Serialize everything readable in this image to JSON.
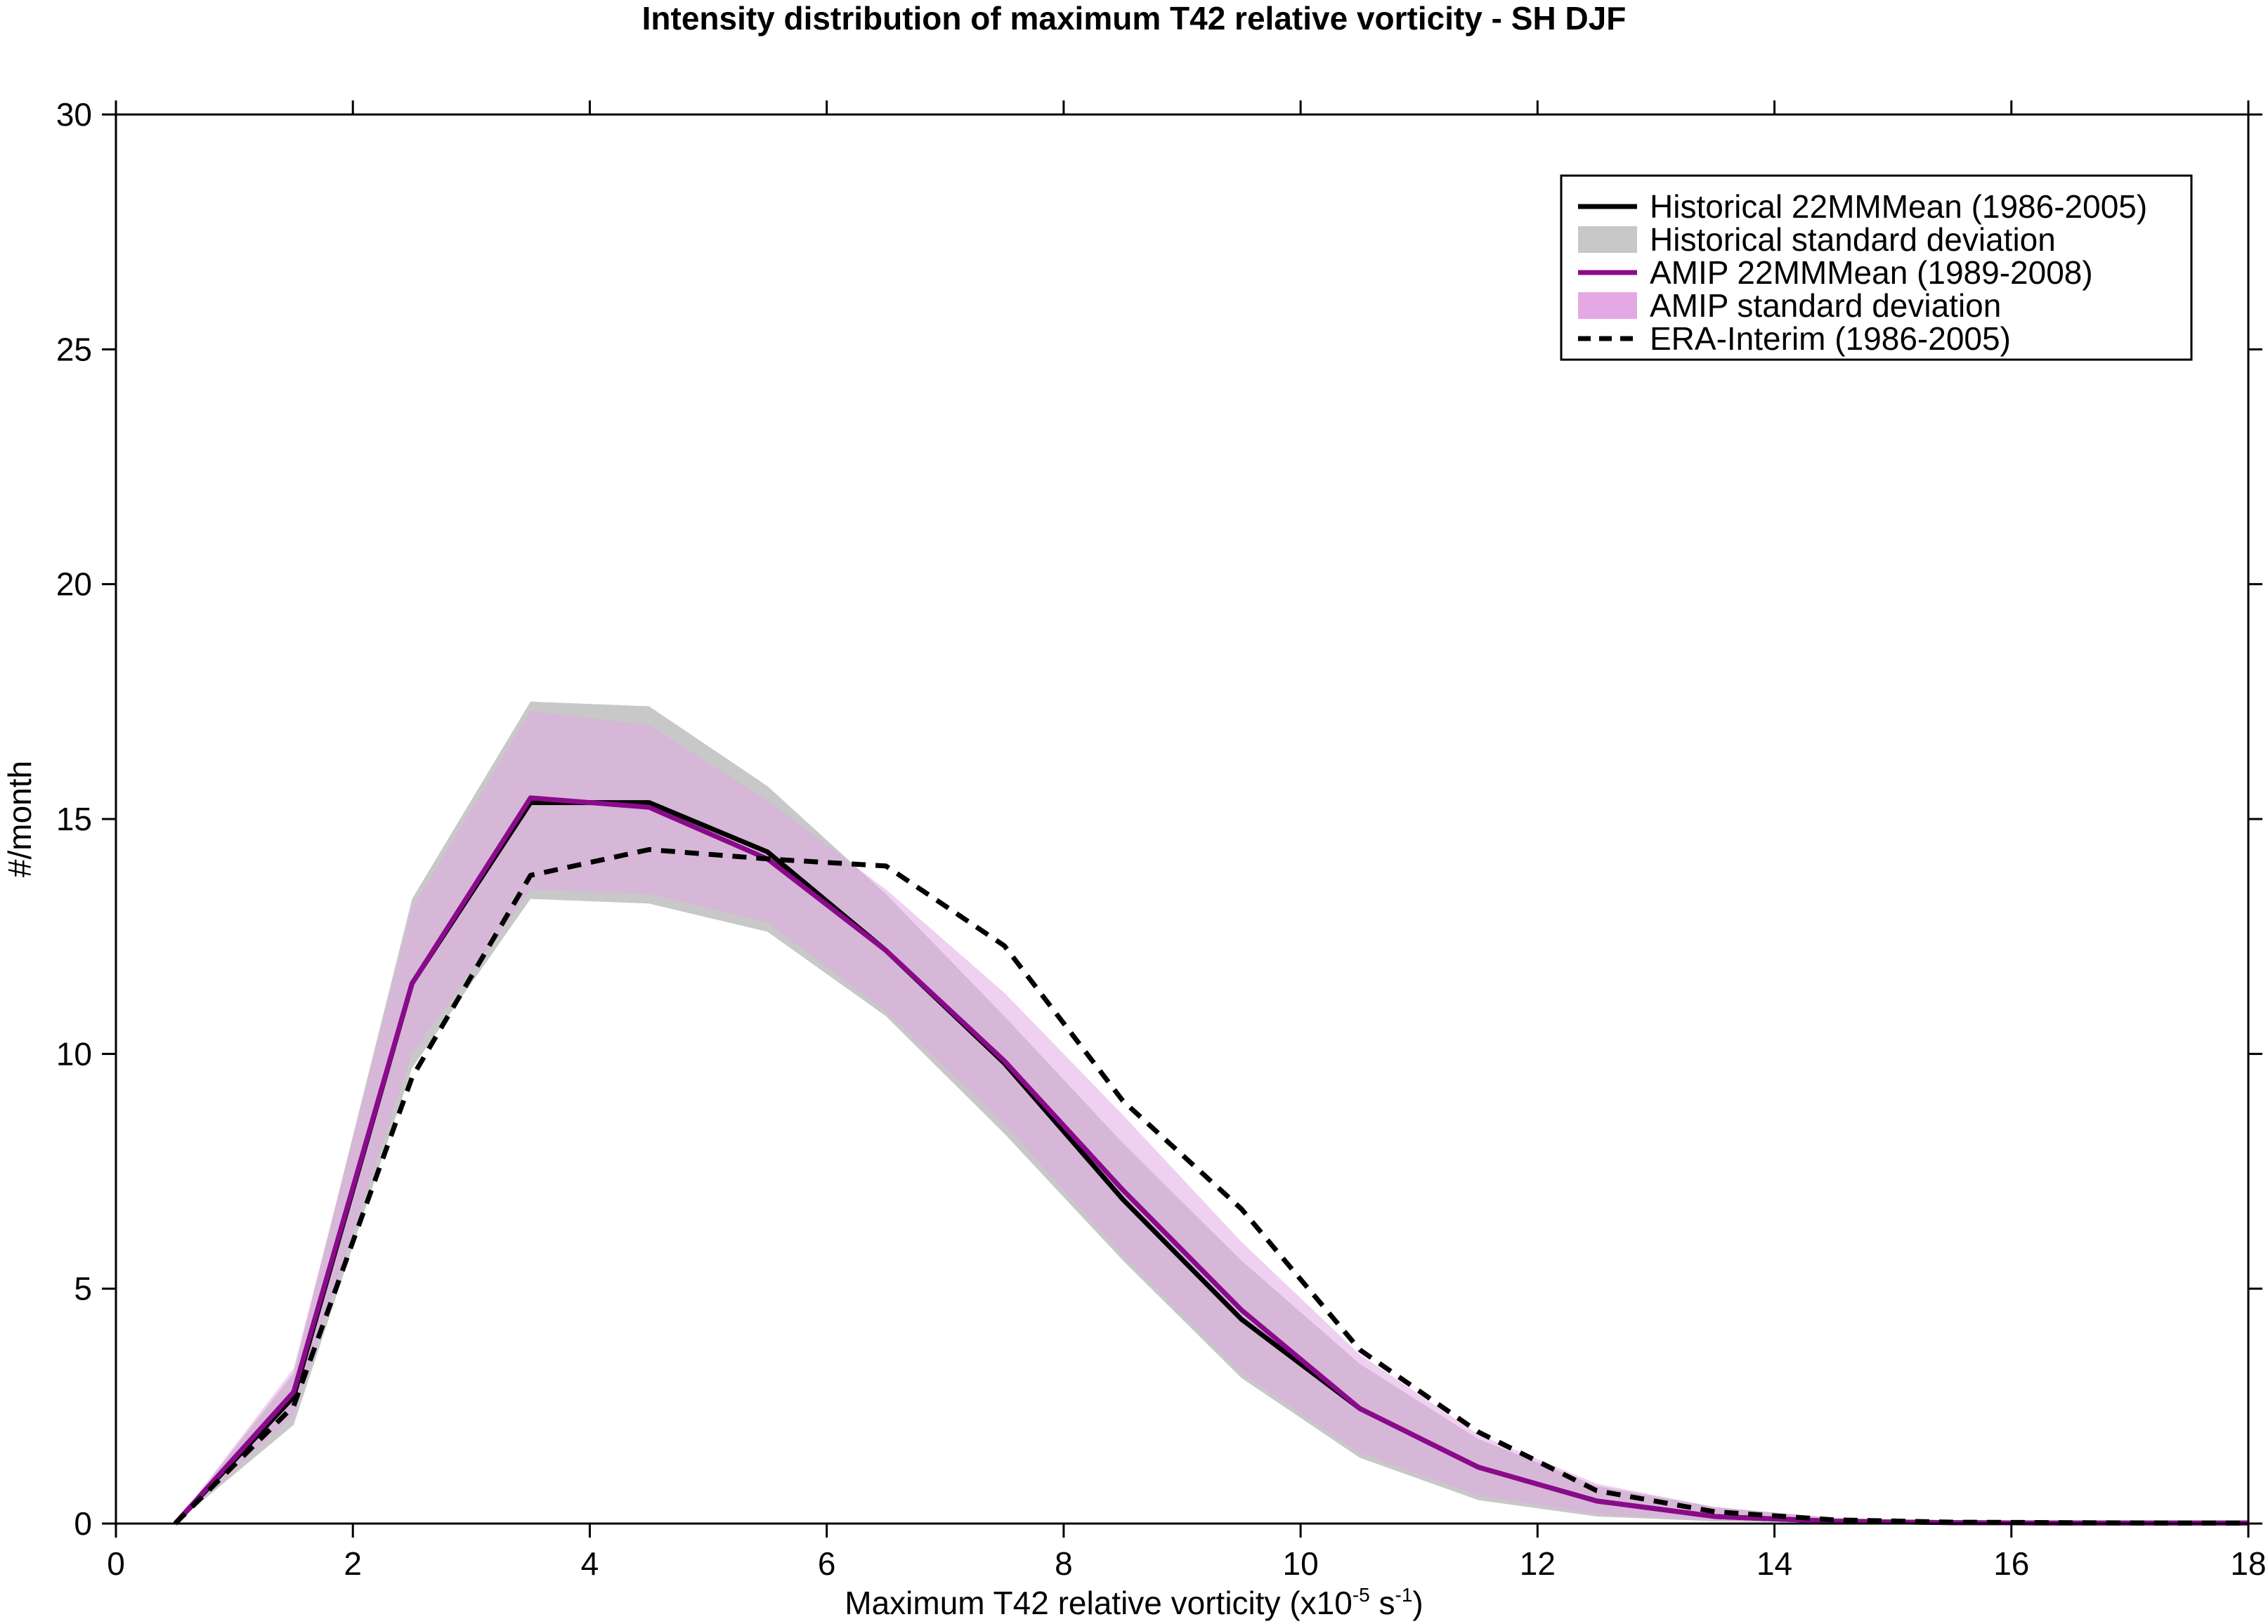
{
  "chart_data": {
    "type": "line",
    "title": "Intensity distribution of maximum T42 relative vorticity - SH DJF",
    "xlabel": {
      "prefix": "Maximum T42 relative vorticity (x10",
      "exp1": "-5",
      "mid": " s",
      "exp2": "-1",
      "suffix": ")"
    },
    "ylabel": "#/month",
    "xlim": [
      0,
      18
    ],
    "ylim": [
      0,
      30
    ],
    "xticks": [
      0,
      2,
      4,
      6,
      8,
      10,
      12,
      14,
      16,
      18
    ],
    "yticks": [
      0,
      5,
      10,
      15,
      20,
      25,
      30
    ],
    "grid": false,
    "legend_position": "top-right",
    "x": [
      0.5,
      1.5,
      2.5,
      3.5,
      4.5,
      5.5,
      6.5,
      7.5,
      8.5,
      9.5,
      10.5,
      11.5,
      12.5,
      13.5,
      14.5,
      15.5,
      16.5,
      17.5,
      18
    ],
    "bands": [
      {
        "name": "Historical standard deviation",
        "color": "#c8c8c8",
        "upper": [
          0,
          3.2,
          13.3,
          17.5,
          17.4,
          15.7,
          13.4,
          10.8,
          8.1,
          5.6,
          3.4,
          1.8,
          0.8,
          0.35,
          0.12,
          0.05,
          0.03,
          0.02,
          0.02
        ],
        "lower": [
          0,
          2.1,
          9.7,
          13.3,
          13.2,
          12.6,
          10.8,
          8.3,
          5.6,
          3.1,
          1.4,
          0.5,
          0.15,
          0.05,
          0.02,
          0.01,
          0.01,
          0.01,
          0.01
        ]
      },
      {
        "name": "AMIP standard deviation",
        "color": "#e4a9e4",
        "opacity": 0.55,
        "upper": [
          0,
          3.3,
          13.1,
          17.3,
          17.0,
          15.4,
          13.5,
          11.3,
          8.7,
          6.0,
          3.6,
          1.9,
          0.85,
          0.35,
          0.12,
          0.05,
          0.03,
          0.02,
          0.02
        ],
        "lower": [
          0,
          2.3,
          10.0,
          13.5,
          13.4,
          12.8,
          10.9,
          8.5,
          5.7,
          3.2,
          1.5,
          0.6,
          0.2,
          0.06,
          0.02,
          0.01,
          0.01,
          0.01,
          0.01
        ]
      }
    ],
    "series": [
      {
        "name": "Historical 22MMMean (1986-2005)",
        "color": "#000000",
        "dash": "solid",
        "values": [
          0,
          2.7,
          11.5,
          15.35,
          15.35,
          14.3,
          12.2,
          9.8,
          6.9,
          4.35,
          2.45,
          1.2,
          0.48,
          0.15,
          0.05,
          0.02,
          0.01,
          0.01,
          0.01
        ]
      },
      {
        "name": "AMIP 22MMMean (1989-2008)",
        "color": "#8b0a8b",
        "dash": "solid",
        "values": [
          0,
          2.8,
          11.5,
          15.45,
          15.25,
          14.15,
          12.2,
          9.85,
          7.1,
          4.55,
          2.45,
          1.2,
          0.48,
          0.15,
          0.05,
          0.02,
          0.01,
          0.01,
          0.01
        ]
      },
      {
        "name": "ERA-Interim (1986-2005)",
        "color": "#000000",
        "dash": "dashed",
        "values": [
          0,
          2.5,
          9.5,
          13.8,
          14.35,
          14.15,
          14.0,
          12.3,
          9.0,
          6.7,
          3.7,
          1.95,
          0.7,
          0.25,
          0.08,
          0.03,
          0.02,
          0.01,
          0.01
        ]
      }
    ],
    "legend": [
      {
        "label": "Historical 22MMMean (1986-2005)",
        "kind": "line",
        "color": "#000000",
        "dash": "solid"
      },
      {
        "label": "Historical standard deviation",
        "kind": "patch",
        "color": "#c8c8c8"
      },
      {
        "label": "AMIP 22MMMean (1989-2008)",
        "kind": "line",
        "color": "#8b0a8b",
        "dash": "solid"
      },
      {
        "label": "AMIP standard deviation",
        "kind": "patch",
        "color": "#e4a9e4"
      },
      {
        "label": "ERA-Interim (1986-2005)",
        "kind": "line",
        "color": "#000000",
        "dash": "dashed"
      }
    ]
  }
}
